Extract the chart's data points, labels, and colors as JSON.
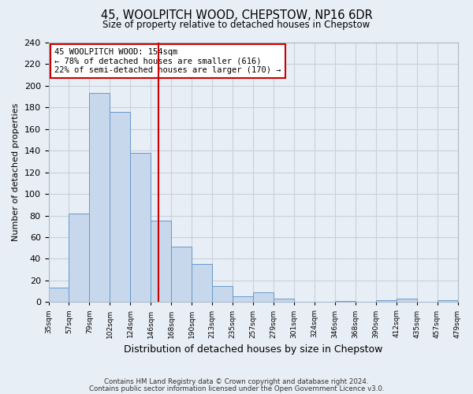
{
  "title": "45, WOOLPITCH WOOD, CHEPSTOW, NP16 6DR",
  "subtitle": "Size of property relative to detached houses in Chepstow",
  "xlabel": "Distribution of detached houses by size in Chepstow",
  "ylabel": "Number of detached properties",
  "bar_values": [
    13,
    82,
    193,
    176,
    138,
    75,
    51,
    35,
    15,
    5,
    9,
    3,
    0,
    0,
    1,
    0,
    2,
    3,
    0,
    2
  ],
  "tick_labels": [
    "35sqm",
    "57sqm",
    "79sqm",
    "102sqm",
    "124sqm",
    "146sqm",
    "168sqm",
    "190sqm",
    "213sqm",
    "235sqm",
    "257sqm",
    "279sqm",
    "301sqm",
    "324sqm",
    "346sqm",
    "368sqm",
    "390sqm",
    "412sqm",
    "435sqm",
    "457sqm",
    "479sqm"
  ],
  "bar_color": "#c8d8ec",
  "bar_edge_color": "#6699cc",
  "ylim": [
    0,
    240
  ],
  "yticks": [
    0,
    20,
    40,
    60,
    80,
    100,
    120,
    140,
    160,
    180,
    200,
    220,
    240
  ],
  "property_line_bin": 5,
  "property_line_color": "#cc0000",
  "annotation_title": "45 WOOLPITCH WOOD: 154sqm",
  "annotation_line1": "← 78% of detached houses are smaller (616)",
  "annotation_line2": "22% of semi-detached houses are larger (170) →",
  "annotation_box_color": "#cc0000",
  "footnote1": "Contains HM Land Registry data © Crown copyright and database right 2024.",
  "footnote2": "Contains public sector information licensed under the Open Government Licence v3.0.",
  "background_color": "#e8eef5",
  "grid_color": "#c8d0dc",
  "n_bins": 20,
  "n_ticks": 21
}
